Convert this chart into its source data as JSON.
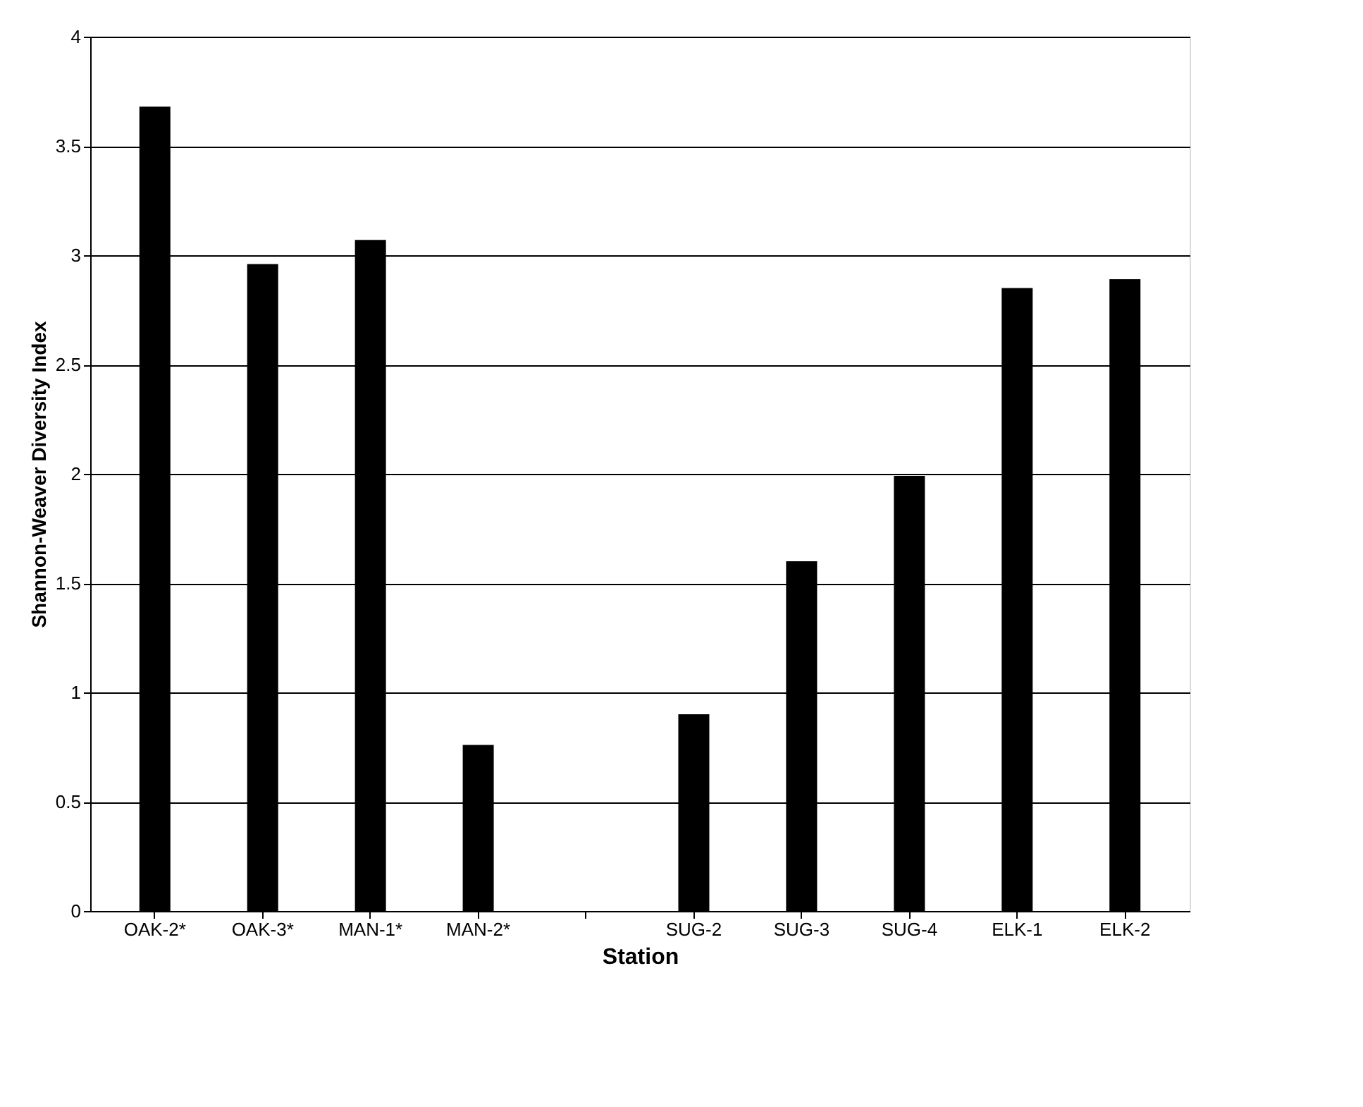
{
  "chart_data": {
    "type": "bar",
    "xlabel": "Station",
    "ylabel": "Shannon-Weaver Diversity Index",
    "categories": [
      "OAK-2*",
      "OAK-3*",
      "MAN-1*",
      "MAN-2*",
      null,
      "SUG-2",
      "SUG-3",
      "SUG-4",
      "ELK-1",
      "ELK-2"
    ],
    "values": [
      3.68,
      2.96,
      3.07,
      0.76,
      null,
      0.9,
      1.6,
      1.99,
      2.85,
      2.89
    ],
    "color": "#000000",
    "ylim": [
      0,
      4
    ],
    "yticks": [
      0,
      0.5,
      1,
      1.5,
      2,
      2.5,
      3,
      3.5,
      4
    ],
    "grid": "y"
  }
}
